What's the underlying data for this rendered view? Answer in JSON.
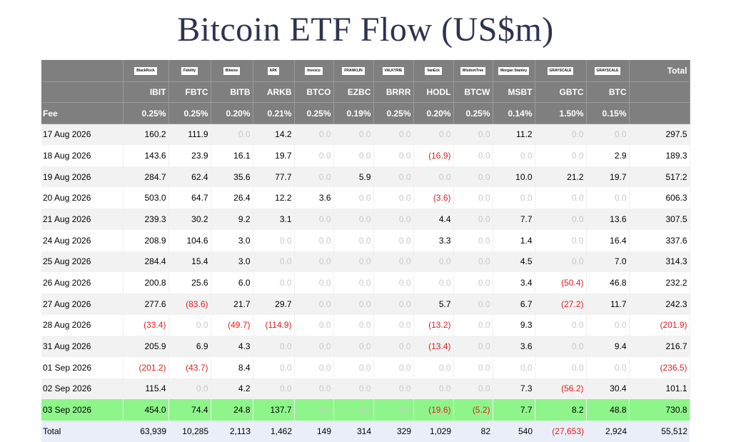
{
  "title": "Bitcoin ETF Flow (US$m)",
  "header": {
    "total_label": "Total",
    "fee_label": "Fee",
    "issuers": [
      {
        "logo": "BlackRock",
        "ticker": "IBIT",
        "fee": "0.25%"
      },
      {
        "logo": "Fidelity",
        "ticker": "FBTC",
        "fee": "0.25%"
      },
      {
        "logo": "Bitwise",
        "ticker": "BITB",
        "fee": "0.20%"
      },
      {
        "logo": "ARK",
        "ticker": "ARKB",
        "fee": "0.21%"
      },
      {
        "logo": "Invesco",
        "ticker": "BTCO",
        "fee": "0.25%"
      },
      {
        "logo": "FRANKLIN",
        "ticker": "EZBC",
        "fee": "0.19%"
      },
      {
        "logo": "VALKYRIE",
        "ticker": "BRRR",
        "fee": "0.25%"
      },
      {
        "logo": "VanEck",
        "ticker": "HODL",
        "fee": "0.20%"
      },
      {
        "logo": "WisdomTree",
        "ticker": "BTCW",
        "fee": "0.25%"
      },
      {
        "logo": "Morgan Stanley",
        "ticker": "MSBT",
        "fee": "0.14%"
      },
      {
        "logo": "GRAYSCALE",
        "ticker": "GBTC",
        "fee": "1.50%"
      },
      {
        "logo": "GRAYSCALE",
        "ticker": "BTC",
        "fee": "0.15%"
      }
    ]
  },
  "rows": [
    {
      "date": "17 Aug 2026",
      "values": [
        "160.2",
        "111.9",
        "0.0",
        "14.2",
        "0.0",
        "0.0",
        "0.0",
        "0.0",
        "0.0",
        "11.2",
        "0.0",
        "0.0"
      ],
      "total": "297.5"
    },
    {
      "date": "18 Aug 2026",
      "values": [
        "143.6",
        "23.9",
        "16.1",
        "19.7",
        "0.0",
        "0.0",
        "0.0",
        "(16.9)",
        "0.0",
        "0.0",
        "0.0",
        "2.9"
      ],
      "total": "189.3"
    },
    {
      "date": "19 Aug 2026",
      "values": [
        "284.7",
        "62.4",
        "35.6",
        "77.7",
        "0.0",
        "5.9",
        "0.0",
        "0.0",
        "0.0",
        "10.0",
        "21.2",
        "19.7"
      ],
      "total": "517.2"
    },
    {
      "date": "20 Aug 2026",
      "values": [
        "503.0",
        "64.7",
        "26.4",
        "12.2",
        "3.6",
        "0.0",
        "0.0",
        "(3.6)",
        "0.0",
        "0.0",
        "0.0",
        "0.0"
      ],
      "total": "606.3"
    },
    {
      "date": "21 Aug 2026",
      "values": [
        "239.3",
        "30.2",
        "9.2",
        "3.1",
        "0.0",
        "0.0",
        "0.0",
        "4.4",
        "0.0",
        "7.7",
        "0.0",
        "13.6"
      ],
      "total": "307.5"
    },
    {
      "date": "24 Aug 2026",
      "values": [
        "208.9",
        "104.6",
        "3.0",
        "0.0",
        "0.0",
        "0.0",
        "0.0",
        "3.3",
        "0.0",
        "1.4",
        "0.0",
        "16.4"
      ],
      "total": "337.6"
    },
    {
      "date": "25 Aug 2026",
      "values": [
        "284.4",
        "15.4",
        "3.0",
        "0.0",
        "0.0",
        "0.0",
        "0.0",
        "0.0",
        "0.0",
        "4.5",
        "0.0",
        "7.0"
      ],
      "total": "314.3"
    },
    {
      "date": "26 Aug 2026",
      "values": [
        "200.8",
        "25.6",
        "6.0",
        "0.0",
        "0.0",
        "0.0",
        "0.0",
        "0.0",
        "0.0",
        "3.4",
        "(50.4)",
        "46.8"
      ],
      "total": "232.2"
    },
    {
      "date": "27 Aug 2026",
      "values": [
        "277.6",
        "(83.6)",
        "21.7",
        "29.7",
        "0.0",
        "0.0",
        "0.0",
        "5.7",
        "0.0",
        "6.7",
        "(27.2)",
        "11.7"
      ],
      "total": "242.3"
    },
    {
      "date": "28 Aug 2026",
      "values": [
        "(33.4)",
        "0.0",
        "(49.7)",
        "(114.9)",
        "0.0",
        "0.0",
        "0.0",
        "(13.2)",
        "0.0",
        "9.3",
        "0.0",
        "0.0"
      ],
      "total": "(201.9)"
    },
    {
      "date": "31 Aug 2026",
      "values": [
        "205.9",
        "6.9",
        "4.3",
        "0.0",
        "0.0",
        "0.0",
        "0.0",
        "(13.4)",
        "0.0",
        "3.6",
        "0.0",
        "9.4"
      ],
      "total": "216.7"
    },
    {
      "date": "01 Sep 2026",
      "values": [
        "(201.2)",
        "(43.7)",
        "8.4",
        "0.0",
        "0.0",
        "0.0",
        "0.0",
        "0.0",
        "0.0",
        "0.0",
        "0.0",
        "0.0"
      ],
      "total": "(236.5)"
    },
    {
      "date": "02 Sep 2026",
      "values": [
        "115.4",
        "0.0",
        "4.2",
        "0.0",
        "0.0",
        "0.0",
        "0.0",
        "0.0",
        "0.0",
        "7.3",
        "(56.2)",
        "30.4"
      ],
      "total": "101.1"
    },
    {
      "date": "03 Sep 2026",
      "values": [
        "454.0",
        "74.4",
        "24.8",
        "137.7",
        "0.0",
        "0.0",
        "0.0",
        "(19.6)",
        "(5.2)",
        "7.7",
        "8.2",
        "48.8"
      ],
      "total": "730.8",
      "highlight": true
    }
  ],
  "totals": {
    "label": "Total",
    "values": [
      "63,939",
      "10,285",
      "2,113",
      "1,462",
      "149",
      "314",
      "329",
      "1,029",
      "82",
      "540",
      "(27,653)",
      "2,924"
    ],
    "total": "55,512"
  },
  "colors": {
    "header_bg": "#7f7f7f",
    "highlight_row": "#8ef58a",
    "negative": "#e02020",
    "zero": "#c8c8c8",
    "title": "#2e3350"
  }
}
